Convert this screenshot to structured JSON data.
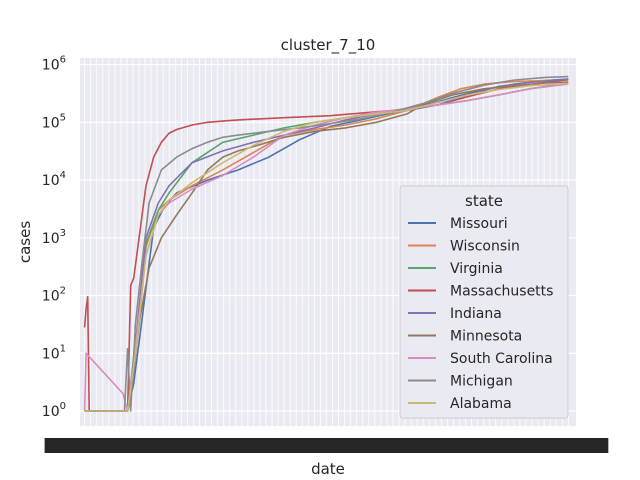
{
  "chart_data": {
    "type": "line",
    "title": "cluster_7_10",
    "xlabel": "date",
    "ylabel": "cases",
    "yscale": "log",
    "ylim": [
      0.55,
      1300000
    ],
    "yticks": [
      {
        "value": 1,
        "label": "10",
        "exp": "0"
      },
      {
        "value": 10,
        "label": "10",
        "exp": "1"
      },
      {
        "value": 100,
        "label": "10",
        "exp": "2"
      },
      {
        "value": 1000,
        "label": "10",
        "exp": "3"
      },
      {
        "value": 10000,
        "label": "10",
        "exp": "4"
      },
      {
        "value": 100000,
        "label": "10",
        "exp": "5"
      },
      {
        "value": 1000000,
        "label": "10",
        "exp": "6"
      }
    ],
    "xrange": [
      -3,
      320
    ],
    "grid": true,
    "legend": {
      "title": "state",
      "placement": "lower-right"
    },
    "series": [
      {
        "name": "Missouri",
        "color": "#4c72b0",
        "x": [
          0,
          28,
          32,
          36,
          45,
          52,
          60,
          80,
          100,
          120,
          140,
          160,
          180,
          200,
          220,
          240,
          260,
          280,
          300,
          315
        ],
        "y": [
          1,
          1,
          3,
          20,
          1500,
          3500,
          6000,
          10000,
          15000,
          25000,
          50000,
          85000,
          110000,
          145000,
          190000,
          270000,
          370000,
          460000,
          530000,
          560000
        ]
      },
      {
        "name": "Wisconsin",
        "color": "#dd8452",
        "x": [
          0,
          5,
          28,
          34,
          40,
          48,
          55,
          70,
          90,
          110,
          130,
          150,
          170,
          190,
          210,
          230,
          245,
          260,
          280,
          300,
          315
        ],
        "y": [
          1,
          1,
          1,
          15,
          700,
          3000,
          4500,
          8000,
          15000,
          30000,
          60000,
          75000,
          90000,
          115000,
          160000,
          270000,
          380000,
          460000,
          510000,
          530000,
          540000
        ]
      },
      {
        "name": "Virginia",
        "color": "#55a868",
        "x": [
          0,
          28,
          34,
          40,
          48,
          55,
          70,
          90,
          110,
          130,
          150,
          170,
          190,
          210,
          230,
          250,
          270,
          290,
          315
        ],
        "y": [
          1,
          1,
          20,
          800,
          3000,
          6000,
          20000,
          45000,
          60000,
          80000,
          100000,
          120000,
          140000,
          160000,
          200000,
          240000,
          300000,
          380000,
          480000
        ]
      },
      {
        "name": "Massachusetts",
        "color": "#c44e52",
        "x": [
          0,
          1,
          2,
          3,
          28,
          30,
          32,
          34,
          37,
          40,
          45,
          50,
          55,
          60,
          70,
          80,
          90,
          100,
          130,
          160,
          200,
          230,
          250,
          270,
          290,
          315
        ],
        "y": [
          28,
          60,
          95,
          1,
          1,
          150,
          200,
          500,
          2000,
          8000,
          25000,
          45000,
          65000,
          75000,
          90000,
          100000,
          105000,
          110000,
          120000,
          130000,
          160000,
          200000,
          280000,
          380000,
          450000,
          550000
        ]
      },
      {
        "name": "Indiana",
        "color": "#8172b3",
        "x": [
          0,
          28,
          34,
          40,
          48,
          55,
          70,
          90,
          110,
          130,
          150,
          170,
          190,
          210,
          230,
          250,
          270,
          290,
          315
        ],
        "y": [
          1,
          1,
          25,
          1000,
          4000,
          8000,
          20000,
          32000,
          45000,
          60000,
          80000,
          110000,
          140000,
          160000,
          200000,
          300000,
          420000,
          490000,
          560000
        ]
      },
      {
        "name": "Minnesota",
        "color": "#937860",
        "x": [
          0,
          2,
          28,
          32,
          36,
          42,
          50,
          60,
          70,
          80,
          90,
          100,
          110,
          130,
          150,
          170,
          190,
          210,
          220,
          240,
          260,
          280,
          300,
          315
        ],
        "y": [
          1,
          1,
          1,
          5,
          40,
          300,
          1000,
          2500,
          6000,
          15000,
          25000,
          32000,
          38000,
          55000,
          70000,
          80000,
          100000,
          140000,
          200000,
          300000,
          380000,
          430000,
          480000,
          500000
        ]
      },
      {
        "name": "South Carolina",
        "color": "#da8bc3",
        "x": [
          0,
          1,
          25,
          28,
          34,
          40,
          48,
          55,
          70,
          90,
          110,
          130,
          150,
          170,
          190,
          210,
          230,
          250,
          270,
          290,
          315
        ],
        "y": [
          1,
          10,
          2,
          1,
          20,
          500,
          2500,
          4000,
          7000,
          12000,
          25000,
          60000,
          90000,
          120000,
          150000,
          170000,
          200000,
          240000,
          300000,
          380000,
          460000
        ]
      },
      {
        "name": "Michigan",
        "color": "#8c8c8c",
        "x": [
          0,
          2,
          26,
          28,
          30,
          33,
          37,
          42,
          50,
          60,
          70,
          80,
          90,
          100,
          120,
          140,
          160,
          180,
          200,
          220,
          240,
          260,
          280,
          300,
          315
        ],
        "y": [
          1,
          1,
          1,
          12,
          1,
          30,
          300,
          4000,
          15000,
          25000,
          35000,
          45000,
          55000,
          60000,
          70000,
          80000,
          95000,
          115000,
          150000,
          210000,
          320000,
          440000,
          540000,
          600000,
          620000
        ]
      },
      {
        "name": "Alabama",
        "color": "#ccb974",
        "x": [
          0,
          28,
          34,
          40,
          48,
          55,
          70,
          90,
          110,
          130,
          150,
          170,
          190,
          210,
          230,
          250,
          270,
          290,
          315
        ],
        "y": [
          1,
          1,
          15,
          500,
          2500,
          4500,
          9000,
          20000,
          40000,
          70000,
          100000,
          120000,
          140000,
          160000,
          220000,
          300000,
          370000,
          430000,
          470000
        ]
      }
    ]
  }
}
